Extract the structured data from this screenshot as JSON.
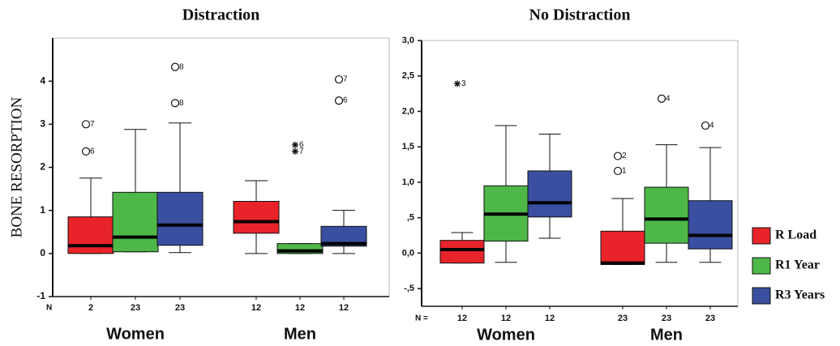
{
  "chart_data": [
    {
      "type": "box",
      "title": "Distraction",
      "y_label": "BONE RESORPTION",
      "n_label": "N",
      "categories": [
        "Women",
        "Men"
      ],
      "ylim": [
        -1,
        5
      ],
      "yticks": [
        -1,
        0,
        1,
        2,
        3,
        4
      ],
      "series": [
        {
          "color": "#e8242a",
          "marker": "circle",
          "stats": [
            {
              "min": 0,
              "q1": 0,
              "median": 0.18,
              "q3": 0.85,
              "max": 1.75,
              "n": 2,
              "outliers": [
                {
                  "value": 3.0,
                  "label": "7"
                },
                {
                  "value": 2.37,
                  "label": "6"
                }
              ]
            },
            {
              "min": 0,
              "q1": 0.47,
              "median": 0.74,
              "q3": 1.21,
              "max": 1.69,
              "n": 12,
              "outliers": []
            }
          ]
        },
        {
          "color": "#4db848",
          "marker": "star",
          "stats": [
            {
              "min": 0.04,
              "q1": 0.04,
              "median": 0.38,
              "q3": 1.42,
              "max": 2.88,
              "n": 23,
              "outliers": []
            },
            {
              "min": 0,
              "q1": 0,
              "median": 0.06,
              "q3": 0.23,
              "max": 0.23,
              "n": 12,
              "outliers": [
                {
                  "value": 2.52,
                  "label": "6"
                },
                {
                  "value": 2.37,
                  "label": "7"
                }
              ]
            }
          ]
        },
        {
          "color": "#3a4fa0",
          "marker": "circle",
          "stats": [
            {
              "min": 0.02,
              "q1": 0.19,
              "median": 0.66,
              "q3": 1.42,
              "max": 3.03,
              "n": 23,
              "outliers": [
                {
                  "value": 4.33,
                  "label": "8"
                },
                {
                  "value": 3.49,
                  "label": "8"
                }
              ]
            },
            {
              "min": 0,
              "q1": 0.17,
              "median": 0.23,
              "q3": 0.63,
              "max": 1.0,
              "n": 12,
              "outliers": [
                {
                  "value": 4.04,
                  "label": "7"
                },
                {
                  "value": 3.55,
                  "label": "6"
                }
              ]
            }
          ]
        }
      ]
    },
    {
      "type": "box",
      "title": "No Distraction",
      "n_label": "N =",
      "categories": [
        "Women",
        "Men"
      ],
      "ylim": [
        -0.75,
        3.0
      ],
      "yticks": [
        {
          "value": -0.5,
          "label": "-,5"
        },
        {
          "value": 0,
          "label": "0,0"
        },
        {
          "value": 0.5,
          "label": ",5"
        },
        {
          "value": 1.0,
          "label": "1,0"
        },
        {
          "value": 1.5,
          "label": "1,5"
        },
        {
          "value": 2.0,
          "label": "2,0"
        },
        {
          "value": 2.5,
          "label": "2,5"
        },
        {
          "value": 3.0,
          "label": "3,0"
        }
      ],
      "series": [
        {
          "name": "R Load",
          "color": "#e8242a",
          "stats": [
            {
              "min": -0.14,
              "q1": -0.14,
              "median": 0.05,
              "q3": 0.18,
              "max": 0.29,
              "n": 12,
              "marker": "star",
              "outliers": [
                {
                  "value": 2.39,
                  "label": "3"
                }
              ]
            },
            {
              "min": -0.16,
              "q1": -0.16,
              "median": -0.14,
              "q3": 0.31,
              "max": 0.77,
              "n": 23,
              "marker": "circle",
              "outliers": [
                {
                  "value": 1.37,
                  "label": "2"
                },
                {
                  "value": 1.16,
                  "label": "1"
                }
              ]
            }
          ]
        },
        {
          "name": "R1 Year",
          "color": "#4db848",
          "stats": [
            {
              "min": -0.13,
              "q1": 0.17,
              "median": 0.55,
              "q3": 0.95,
              "max": 1.8,
              "n": 12,
              "outliers": []
            },
            {
              "min": -0.13,
              "q1": 0.14,
              "median": 0.48,
              "q3": 0.93,
              "max": 1.53,
              "n": 23,
              "marker": "circle",
              "outliers": [
                {
                  "value": 2.18,
                  "label": "4"
                }
              ]
            }
          ]
        },
        {
          "name": "R3 Years",
          "color": "#3a4fa0",
          "stats": [
            {
              "min": 0.21,
              "q1": 0.51,
              "median": 0.71,
              "q3": 1.16,
              "max": 1.68,
              "n": 12,
              "outliers": []
            },
            {
              "min": -0.13,
              "q1": 0.06,
              "median": 0.25,
              "q3": 0.74,
              "max": 1.49,
              "n": 23,
              "marker": "circle",
              "outliers": [
                {
                  "value": 1.8,
                  "label": "4"
                }
              ]
            }
          ]
        }
      ]
    }
  ]
}
